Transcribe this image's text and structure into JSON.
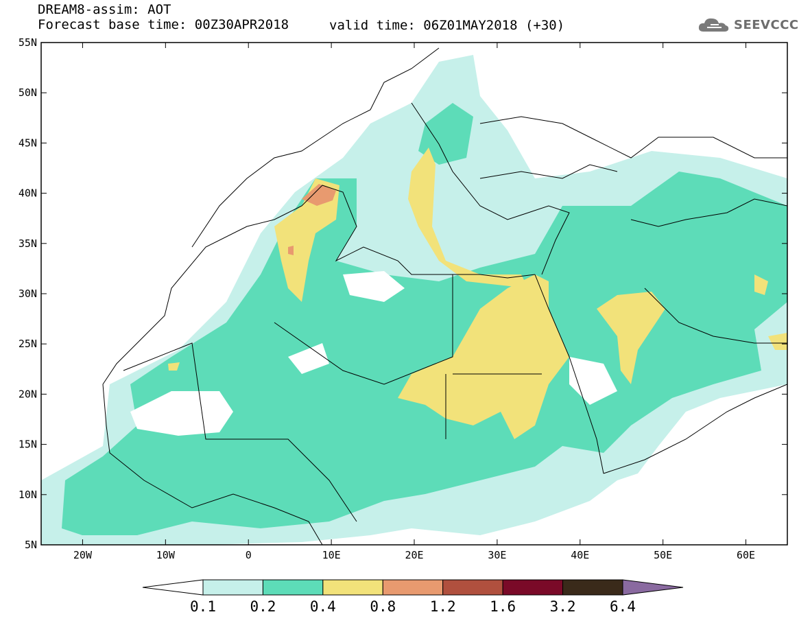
{
  "header": {
    "model_line": "DREAM8-assim: AOT",
    "base_time": "Forecast base time: 00Z30APR2018",
    "valid_time": "valid time: 06Z01MAY2018 (+30)"
  },
  "logo": {
    "text": "SEEVCCC",
    "icon": "cloud-icon"
  },
  "axes": {
    "lat_labels": [
      "55N",
      "50N",
      "45N",
      "40N",
      "35N",
      "30N",
      "25N",
      "20N",
      "15N",
      "10N",
      "5N"
    ],
    "lon_labels": [
      "20W",
      "10W",
      "0",
      "10E",
      "20E",
      "30E",
      "40E",
      "50E",
      "60E"
    ]
  },
  "colorbar": {
    "labels": [
      "0.1",
      "0.2",
      "0.4",
      "0.8",
      "1.2",
      "1.6",
      "3.2",
      "6.4"
    ],
    "colors": [
      "#ffffff",
      "#c6f0ea",
      "#5ddcb8",
      "#f2e27a",
      "#e89a6f",
      "#b0503e",
      "#7a0a28",
      "#3a2a1a",
      "#8a6aa0"
    ]
  },
  "map_data": {
    "variable": "AOT",
    "region": "North Africa, Mediterranean and Middle East",
    "lon_range": [
      -25,
      65
    ],
    "lat_range": [
      5,
      55
    ]
  }
}
